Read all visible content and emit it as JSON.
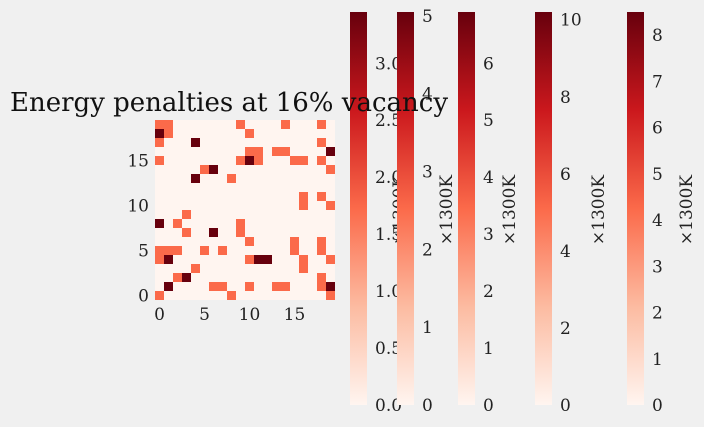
{
  "chart_data": {
    "type": "heatmap",
    "title": "Energy penalties at 16% vacancy",
    "colormap": "Reds",
    "grid_size": 20,
    "x_ticks": [
      "0",
      "5",
      "10",
      "15"
    ],
    "y_ticks": [
      "0",
      "5",
      "10",
      "15"
    ],
    "values_note": "Approximate 20x20 occupancy map read from image; 0 = empty, higher = darker red.",
    "matrix": [
      [
        1,
        0,
        0,
        0,
        0,
        0,
        0,
        0,
        1,
        0,
        0,
        0,
        0,
        0,
        0,
        0,
        0,
        0,
        0,
        1
      ],
      [
        0,
        3,
        0,
        0,
        0,
        0,
        1,
        1,
        0,
        0,
        1,
        0,
        0,
        1,
        1,
        0,
        0,
        0,
        1,
        3
      ],
      [
        0,
        0,
        1,
        3,
        0,
        0,
        0,
        0,
        0,
        0,
        0,
        0,
        0,
        0,
        0,
        0,
        0,
        0,
        1,
        0
      ],
      [
        0,
        0,
        0,
        0,
        1,
        0,
        0,
        0,
        0,
        0,
        0,
        0,
        0,
        0,
        0,
        0,
        1,
        0,
        0,
        0
      ],
      [
        1,
        3,
        0,
        0,
        0,
        0,
        0,
        0,
        0,
        0,
        1,
        3,
        3,
        0,
        0,
        0,
        1,
        0,
        0,
        1
      ],
      [
        1,
        1,
        1,
        0,
        0,
        1,
        0,
        1,
        0,
        0,
        0,
        0,
        0,
        0,
        0,
        1,
        0,
        0,
        1,
        0
      ],
      [
        0,
        0,
        0,
        0,
        0,
        0,
        0,
        0,
        0,
        0,
        1,
        0,
        0,
        0,
        0,
        1,
        0,
        0,
        1,
        0
      ],
      [
        0,
        0,
        0,
        1,
        0,
        0,
        3,
        0,
        0,
        1,
        0,
        0,
        0,
        0,
        0,
        0,
        0,
        0,
        0,
        0
      ],
      [
        3,
        0,
        1,
        0,
        0,
        0,
        0,
        0,
        0,
        1,
        0,
        0,
        0,
        0,
        0,
        0,
        0,
        0,
        0,
        0
      ],
      [
        0,
        0,
        0,
        1,
        0,
        0,
        0,
        0,
        0,
        0,
        0,
        0,
        0,
        0,
        0,
        0,
        0,
        0,
        0,
        0
      ],
      [
        0,
        0,
        0,
        0,
        0,
        0,
        0,
        0,
        0,
        0,
        0,
        0,
        0,
        0,
        0,
        0,
        1,
        0,
        0,
        1
      ],
      [
        0,
        0,
        0,
        0,
        0,
        0,
        0,
        0,
        0,
        0,
        0,
        0,
        0,
        0,
        0,
        0,
        1,
        0,
        1,
        0
      ],
      [
        0,
        0,
        0,
        0,
        0,
        0,
        0,
        0,
        0,
        0,
        0,
        0,
        0,
        0,
        0,
        0,
        0,
        0,
        0,
        0
      ],
      [
        0,
        0,
        0,
        0,
        3,
        0,
        0,
        0,
        1,
        0,
        0,
        0,
        0,
        0,
        0,
        0,
        0,
        0,
        0,
        0
      ],
      [
        0,
        0,
        0,
        0,
        0,
        1,
        3,
        0,
        0,
        0,
        0,
        0,
        0,
        0,
        0,
        0,
        0,
        0,
        0,
        1
      ],
      [
        1,
        0,
        0,
        0,
        0,
        0,
        0,
        0,
        0,
        1,
        3,
        1,
        0,
        0,
        0,
        1,
        1,
        0,
        1,
        0
      ],
      [
        0,
        0,
        0,
        0,
        0,
        0,
        0,
        0,
        0,
        0,
        1,
        1,
        0,
        1,
        1,
        0,
        0,
        0,
        0,
        3
      ],
      [
        1,
        0,
        0,
        0,
        3,
        0,
        0,
        0,
        0,
        0,
        0,
        0,
        0,
        0,
        0,
        0,
        0,
        0,
        1,
        0
      ],
      [
        3,
        1,
        0,
        0,
        0,
        0,
        0,
        0,
        0,
        0,
        1,
        0,
        0,
        0,
        0,
        0,
        0,
        0,
        0,
        0
      ],
      [
        1,
        1,
        0,
        0,
        0,
        0,
        0,
        0,
        0,
        1,
        0,
        0,
        0,
        0,
        1,
        0,
        0,
        0,
        1,
        0
      ]
    ],
    "colorbars": [
      {
        "label": "×1300K",
        "ticks": [
          "0.0",
          "0.5",
          "1.0",
          "1.5",
          "2.0",
          "2.5",
          "3.0"
        ],
        "min": 0,
        "max": 3.45,
        "tick_values": [
          0,
          0.5,
          1,
          1.5,
          2,
          2.5,
          3
        ]
      },
      {
        "label": "×1300K",
        "ticks": [
          "0",
          "1",
          "2",
          "3",
          "4",
          "5"
        ],
        "min": 0,
        "max": 5.05,
        "tick_values": [
          0,
          1,
          2,
          3,
          4,
          5
        ]
      },
      {
        "label": "×1300K",
        "ticks": [
          "0",
          "1",
          "2",
          "3",
          "4",
          "5",
          "6"
        ],
        "min": 0,
        "max": 6.9,
        "tick_values": [
          0,
          1,
          2,
          3,
          4,
          5,
          6
        ]
      },
      {
        "label": "×1300K",
        "ticks": [
          "0",
          "2",
          "4",
          "6",
          "8",
          "10"
        ],
        "min": 0,
        "max": 10.2,
        "tick_values": [
          0,
          2,
          4,
          6,
          8,
          10
        ]
      },
      {
        "label": "×1300K",
        "ticks": [
          "0",
          "1",
          "2",
          "3",
          "4",
          "5",
          "6",
          "7",
          "8"
        ],
        "min": 0,
        "max": 8.5,
        "tick_values": [
          0,
          1,
          2,
          3,
          4,
          5,
          6,
          7,
          8
        ]
      }
    ]
  }
}
